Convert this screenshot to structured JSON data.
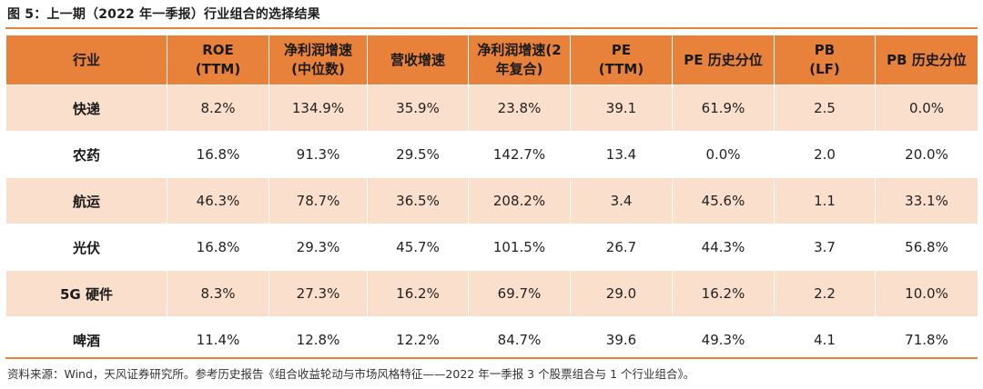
{
  "title": "图 5：上一期（2022 年一季报）行业组合的选择结果",
  "headers": [
    {
      "line1": "行业",
      "line2": ""
    },
    {
      "line1": "ROE",
      "line2": "(TTM)"
    },
    {
      "line1": "净利润增速",
      "line2": "(中位数)"
    },
    {
      "line1": "营收增速",
      "line2": ""
    },
    {
      "line1": "净利润增速(2",
      "line2": "年复合)"
    },
    {
      "line1": "PE",
      "line2": "(TTM)"
    },
    {
      "line1": "PE 历史分位",
      "line2": ""
    },
    {
      "line1": "PB",
      "line2": "(LF)"
    },
    {
      "line1": "PB 历史分位",
      "line2": ""
    }
  ],
  "rows": [
    [
      "快递",
      "8.2%",
      "134.9%",
      "35.9%",
      "23.8%",
      "39.1",
      "61.9%",
      "2.5",
      "0.0%"
    ],
    [
      "农药",
      "16.8%",
      "91.3%",
      "29.5%",
      "142.7%",
      "13.4",
      "0.0%",
      "2.0",
      "20.0%"
    ],
    [
      "航运",
      "46.3%",
      "78.7%",
      "36.5%",
      "208.2%",
      "3.4",
      "45.6%",
      "1.1",
      "33.1%"
    ],
    [
      "光伏",
      "16.8%",
      "29.3%",
      "45.7%",
      "101.5%",
      "26.7",
      "44.3%",
      "3.7",
      "56.8%"
    ],
    [
      "5G 硬件",
      "8.3%",
      "27.3%",
      "16.2%",
      "69.7%",
      "29.0",
      "16.2%",
      "2.2",
      "10.0%"
    ],
    [
      "啤酒",
      "11.4%",
      "12.8%",
      "12.2%",
      "84.7%",
      "39.6",
      "49.3%",
      "4.1",
      "71.8%"
    ]
  ],
  "source": "资料来源：Wind，天风证券研究所。参考历史报告《组合收益轮动与市场风格特征——2022 年一季报 3 个股票组合与 1 个行业组合》。",
  "colors": {
    "accent": "#E8823A",
    "band": "#FADFCD"
  }
}
